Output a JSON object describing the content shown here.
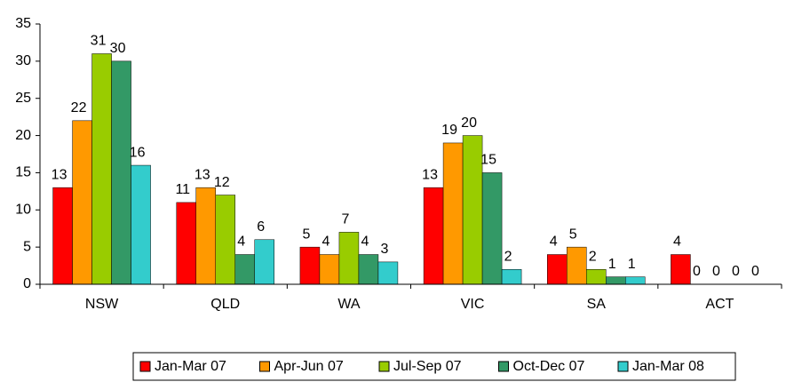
{
  "chart_data": {
    "type": "bar",
    "categories": [
      "NSW",
      "QLD",
      "WA",
      "VIC",
      "SA",
      "ACT"
    ],
    "series": [
      {
        "name": "Jan-Mar 07",
        "color": "#ff0000",
        "values": [
          13,
          11,
          5,
          13,
          4,
          4
        ]
      },
      {
        "name": "Apr-Jun 07",
        "color": "#ff9900",
        "values": [
          22,
          13,
          4,
          19,
          5,
          0
        ]
      },
      {
        "name": "Jul-Sep 07",
        "color": "#99cc00",
        "values": [
          31,
          12,
          7,
          20,
          2,
          0
        ]
      },
      {
        "name": "Oct-Dec 07",
        "color": "#339966",
        "values": [
          30,
          4,
          4,
          15,
          1,
          0
        ]
      },
      {
        "name": "Jan-Mar 08",
        "color": "#33cccc",
        "values": [
          16,
          6,
          3,
          2,
          1,
          0
        ]
      }
    ],
    "ylim": [
      0,
      35
    ],
    "yticks": [
      0,
      5,
      10,
      15,
      20,
      25,
      30,
      35
    ],
    "grid": false,
    "legend": "bottom"
  }
}
